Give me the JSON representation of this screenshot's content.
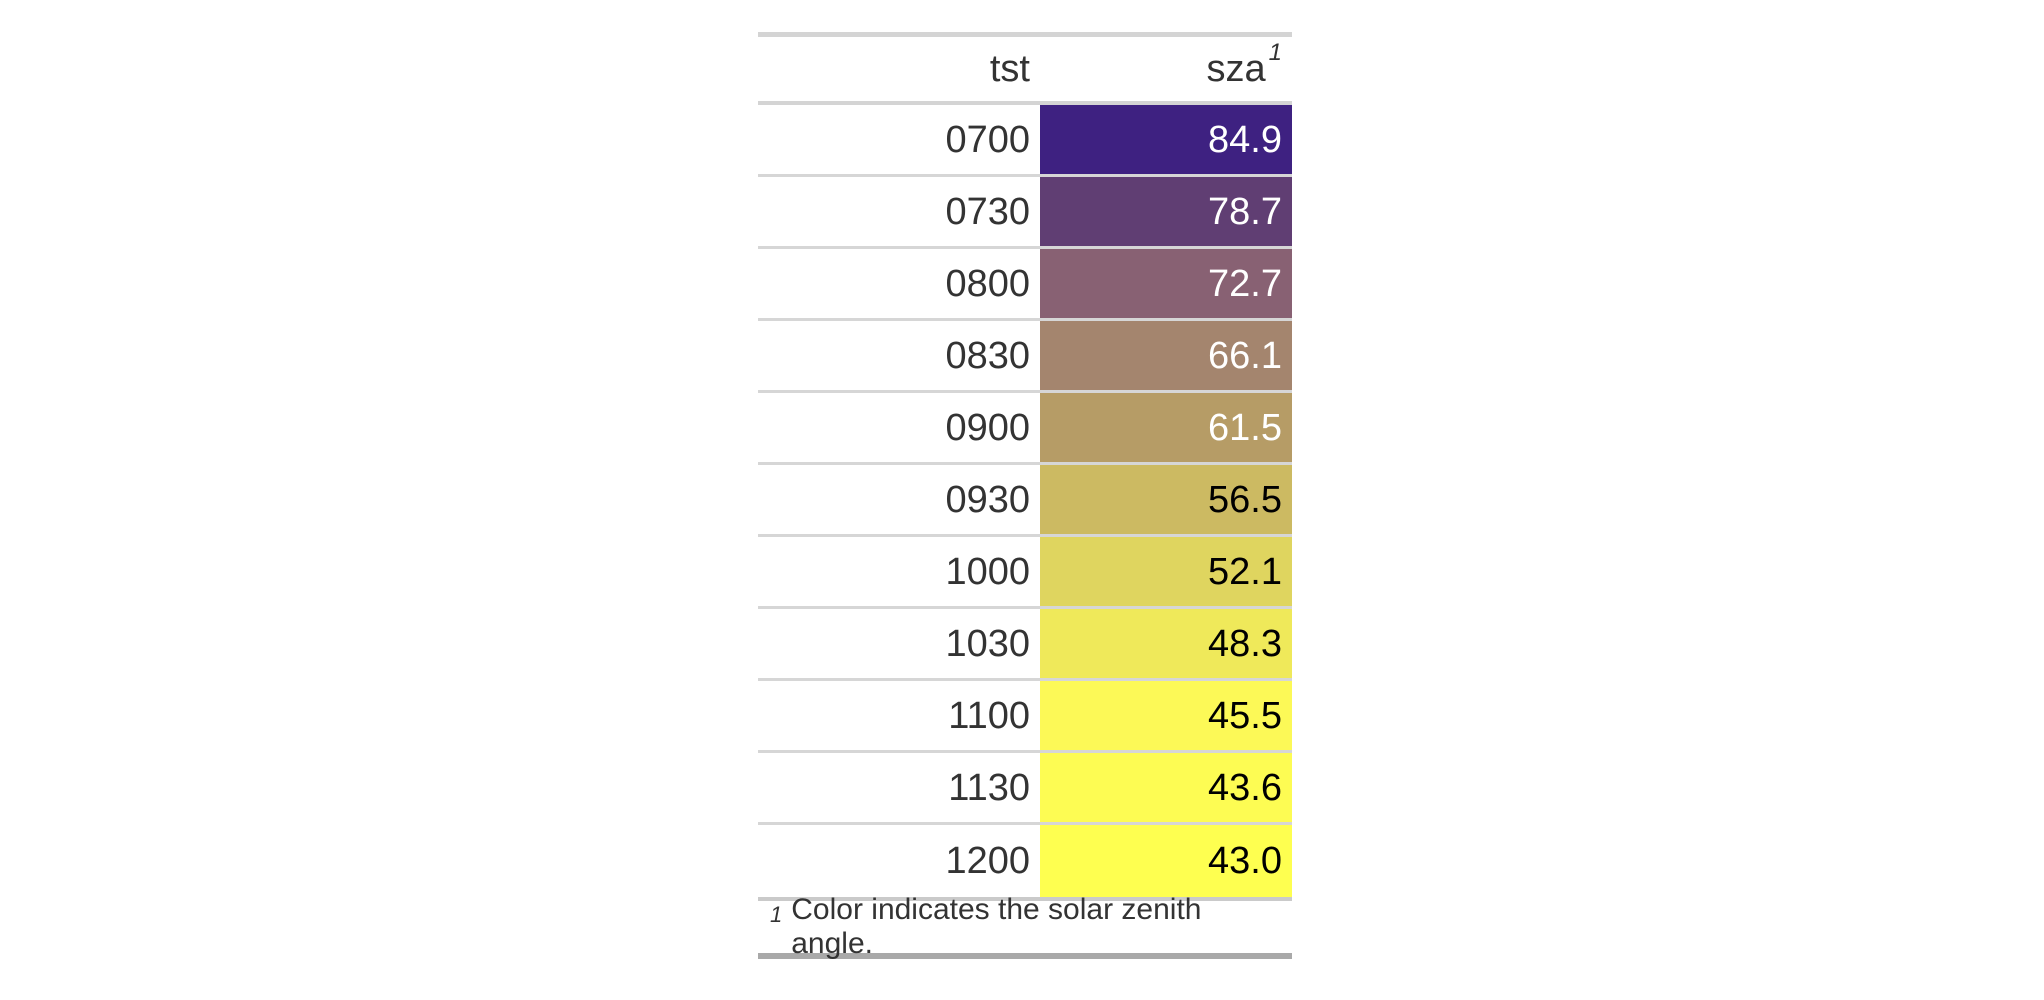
{
  "table": {
    "columns": [
      {
        "label": "tst",
        "footnote_mark": ""
      },
      {
        "label": "sza",
        "footnote_mark": "1"
      }
    ],
    "rows": [
      {
        "tst": "0700",
        "sza": "84.9",
        "color": "#3E2181",
        "text_color": "#FFFFFF"
      },
      {
        "tst": "0730",
        "sza": "78.7",
        "color": "#603E73",
        "text_color": "#FFFFFF"
      },
      {
        "tst": "0800",
        "sza": "72.7",
        "color": "#886173",
        "text_color": "#FFFFFF"
      },
      {
        "tst": "0830",
        "sza": "66.1",
        "color": "#A4856E",
        "text_color": "#FFFFFF"
      },
      {
        "tst": "0900",
        "sza": "61.5",
        "color": "#B69C66",
        "text_color": "#FFFFFF"
      },
      {
        "tst": "0930",
        "sza": "56.5",
        "color": "#CCBA62",
        "text_color": "#000000"
      },
      {
        "tst": "1000",
        "sza": "52.1",
        "color": "#DFD55F",
        "text_color": "#000000"
      },
      {
        "tst": "1030",
        "sza": "48.3",
        "color": "#EFE95A",
        "text_color": "#000000"
      },
      {
        "tst": "1100",
        "sza": "45.5",
        "color": "#FCF957",
        "text_color": "#000000"
      },
      {
        "tst": "1130",
        "sza": "43.6",
        "color": "#FDFC53",
        "text_color": "#000000"
      },
      {
        "tst": "1200",
        "sza": "43.0",
        "color": "#FEFF50",
        "text_color": "#000000"
      }
    ]
  },
  "footnote": {
    "mark": "1",
    "text": "Color indicates the solar zenith angle."
  },
  "chart_data": {
    "type": "table",
    "title": "",
    "columns": [
      "tst",
      "sza"
    ],
    "rows": [
      [
        "0700",
        84.9
      ],
      [
        "0730",
        78.7
      ],
      [
        "0800",
        72.7
      ],
      [
        "0830",
        66.1
      ],
      [
        "0900",
        61.5
      ],
      [
        "0930",
        56.5
      ],
      [
        "1000",
        52.1
      ],
      [
        "1030",
        48.3
      ],
      [
        "1100",
        45.5
      ],
      [
        "1130",
        43.6
      ],
      [
        "1200",
        43.0
      ]
    ],
    "footnote": "Color indicates the solar zenith angle.",
    "color_encoding": {
      "column": "sza",
      "min_value": 43.0,
      "max_value": 84.9,
      "min_color": "#FEFF50",
      "max_color": "#3E2181",
      "description": "Cell background color encodes the solar zenith angle from yellow (low) to dark purple (high)"
    }
  }
}
